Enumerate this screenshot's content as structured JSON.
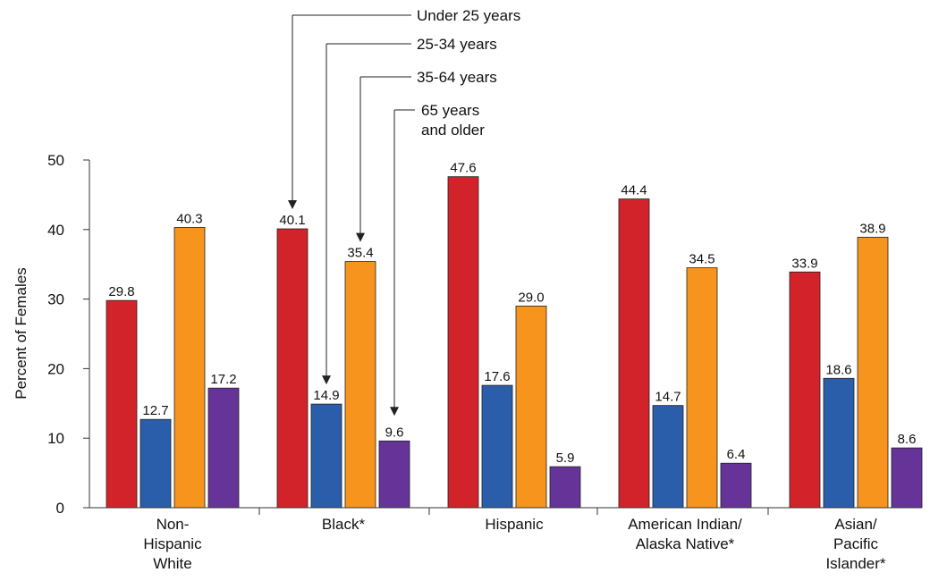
{
  "chart_data": {
    "type": "bar",
    "ylabel": "Percent of Females",
    "ylim": [
      0,
      50
    ],
    "yticks": [
      0,
      10,
      20,
      30,
      40,
      50
    ],
    "grid": false,
    "legend_placement": "top-center",
    "categories": [
      [
        "Non-",
        "Hispanic",
        "White"
      ],
      [
        "Black*"
      ],
      [
        "Hispanic"
      ],
      [
        "American Indian/",
        "Alaska Native*"
      ],
      [
        "Asian/",
        "Pacific",
        "Islander*"
      ]
    ],
    "series": [
      {
        "name": "Under 25 years",
        "color": "#d3232a",
        "values": [
          29.8,
          40.1,
          47.6,
          44.4,
          33.9
        ]
      },
      {
        "name": "25-34 years",
        "color": "#2a5daa",
        "values": [
          12.7,
          14.9,
          17.6,
          14.7,
          18.6
        ]
      },
      {
        "name": "35-64 years",
        "color": "#f7941d",
        "values": [
          40.3,
          35.4,
          29.0,
          34.5,
          38.9
        ]
      },
      {
        "name": [
          "65 years",
          "and older"
        ],
        "color": "#663399",
        "values": [
          17.2,
          9.6,
          5.9,
          6.4,
          8.6
        ]
      }
    ]
  }
}
